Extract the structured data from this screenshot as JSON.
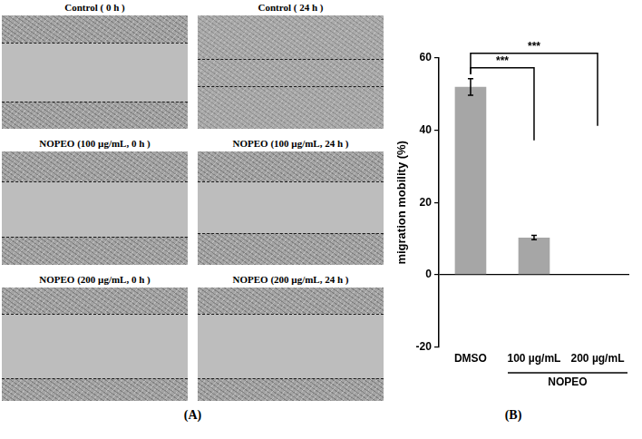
{
  "panel_a": {
    "label": "(A)",
    "images": [
      {
        "title": "Control ( 0 h )"
      },
      {
        "title": "Control ( 24 h )"
      },
      {
        "title": "NOPEO (100 µg/mL, 0 h )"
      },
      {
        "title": "NOPEO (100 µg/mL, 24 h )"
      },
      {
        "title": "NOPEO (200 µg/mL, 0 h )"
      },
      {
        "title": "NOPEO (200 µg/mL, 24 h )"
      }
    ]
  },
  "panel_b_label": "(B)",
  "chart_data": {
    "type": "bar",
    "y_label": "migration mobility (%)",
    "categories": [
      "DMSO",
      "100 µg/mL",
      "200 µg/mL"
    ],
    "values": [
      52,
      10.3,
      0
    ],
    "errors": [
      2.3,
      0.6,
      0
    ],
    "color": "#a6a6a6",
    "ylim": [
      -20,
      60
    ],
    "yticks": [
      -20,
      0,
      20,
      40,
      60
    ],
    "grid": false,
    "groups": [
      {
        "label": "NOPEO",
        "categories": [
          "100 µg/mL",
          "200 µg/mL"
        ]
      }
    ],
    "significance": [
      {
        "from": "DMSO",
        "to": "100 µg/mL",
        "label": "***"
      },
      {
        "from": "DMSO",
        "to": "200 µg/mL",
        "label": "***"
      }
    ]
  }
}
